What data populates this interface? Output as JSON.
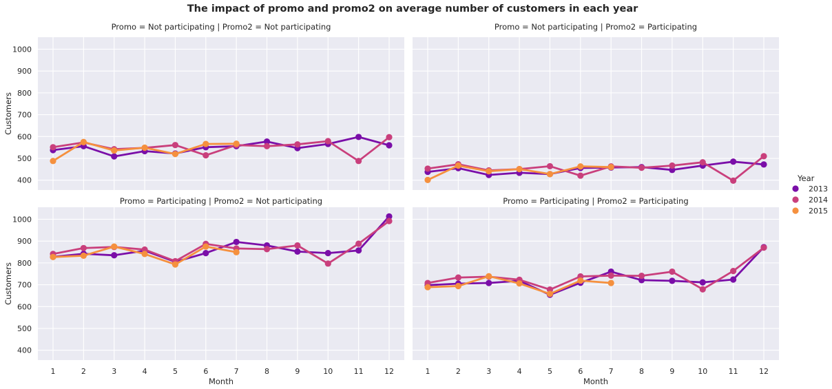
{
  "chart_data": {
    "type": "line",
    "title": "The impact of promo and promo2 on average number of customers in each year",
    "xlabel": "Month",
    "ylabel": "Customers",
    "x": [
      1,
      2,
      3,
      4,
      5,
      6,
      7,
      8,
      9,
      10,
      11,
      12
    ],
    "ylim": [
      355,
      1055
    ],
    "yticks": [
      400,
      500,
      600,
      700,
      800,
      900,
      1000
    ],
    "grid": true,
    "legend": {
      "title": "Year",
      "placement": "right",
      "entries": [
        {
          "name": "2013",
          "color": "#7a0ea8"
        },
        {
          "name": "2014",
          "color": "#c93f7c"
        },
        {
          "name": "2015",
          "color": "#f5903e"
        }
      ]
    },
    "facets": [
      {
        "title": "Promo = Not participating | Promo2 = Not participating",
        "series": [
          {
            "name": "2013",
            "values": [
              538,
              556,
              509,
              533,
              522,
              551,
              556,
              577,
              547,
              566,
              598,
              560
            ]
          },
          {
            "name": "2014",
            "values": [
              551,
              573,
              542,
              548,
              561,
              514,
              561,
              556,
              564,
              579,
              488,
              597
            ]
          },
          {
            "name": "2015",
            "values": [
              488,
              575,
              536,
              549,
              520,
              566,
              567
            ]
          }
        ]
      },
      {
        "title": "Promo = Not participating | Promo2 = Participating",
        "series": [
          {
            "name": "2013",
            "values": [
              438,
              455,
              424,
              434,
              428,
              456,
              458,
              460,
              447,
              467,
              485,
              472
            ]
          },
          {
            "name": "2014",
            "values": [
              453,
              473,
              445,
              451,
              464,
              421,
              463,
              457,
              467,
              482,
              398,
              510
            ]
          },
          {
            "name": "2015",
            "values": [
              401,
              467,
              441,
              451,
              428,
              463,
              460
            ]
          }
        ]
      },
      {
        "title": "Promo = Participating | Promo2 = Not participating",
        "series": [
          {
            "name": "2013",
            "values": [
              828,
              842,
              835,
              856,
              805,
              845,
              896,
              880,
              852,
              845,
              857,
              1013
            ]
          },
          {
            "name": "2014",
            "values": [
              841,
              868,
              873,
              861,
              808,
              887,
              866,
              863,
              880,
              797,
              888,
              992
            ]
          },
          {
            "name": "2015",
            "values": [
              827,
              833,
              875,
              841,
              793,
              875,
              849
            ]
          }
        ]
      },
      {
        "title": "Promo = Participating | Promo2 = Participating",
        "series": [
          {
            "name": "2013",
            "values": [
              698,
              705,
              708,
              718,
              654,
              709,
              760,
              721,
              718,
              711,
              724,
              872
            ]
          },
          {
            "name": "2014",
            "values": [
              708,
              733,
              737,
              723,
              678,
              738,
              742,
              741,
              760,
              679,
              763,
              870
            ]
          },
          {
            "name": "2015",
            "values": [
              689,
              694,
              739,
              706,
              658,
              719,
              708
            ]
          }
        ]
      }
    ]
  }
}
